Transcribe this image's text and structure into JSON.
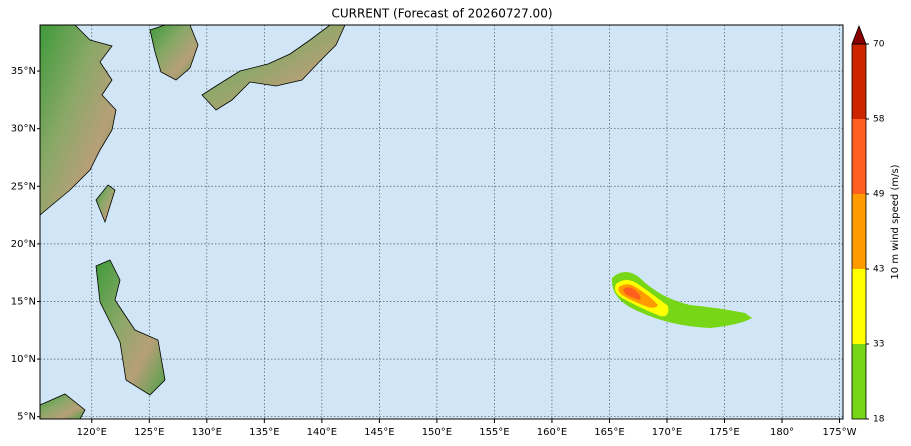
{
  "map": {
    "title": "CURRENT (Forecast of 20260727.00)",
    "lon_range": [
      115.5,
      185.3
    ],
    "lat_range": [
      4.8,
      39
    ],
    "lon_ticks": [
      {
        "value": 120,
        "label": "120°E"
      },
      {
        "value": 125,
        "label": "125°E"
      },
      {
        "value": 130,
        "label": "130°E"
      },
      {
        "value": 135,
        "label": "135°E"
      },
      {
        "value": 140,
        "label": "140°E"
      },
      {
        "value": 145,
        "label": "145°E"
      },
      {
        "value": 150,
        "label": "150°E"
      },
      {
        "value": 155,
        "label": "155°E"
      },
      {
        "value": 160,
        "label": "160°E"
      },
      {
        "value": 165,
        "label": "165°E"
      },
      {
        "value": 170,
        "label": "170°E"
      },
      {
        "value": 175,
        "label": "175°E"
      },
      {
        "value": 180,
        "label": "180°"
      },
      {
        "value": 185,
        "label": "175°W"
      }
    ],
    "lat_ticks": [
      {
        "value": 5,
        "label": "5°N"
      },
      {
        "value": 10,
        "label": "10°N"
      },
      {
        "value": 15,
        "label": "15°N"
      },
      {
        "value": 20,
        "label": "20°N"
      },
      {
        "value": 25,
        "label": "25°N"
      },
      {
        "value": 30,
        "label": "30°N"
      },
      {
        "value": 35,
        "label": "35°N"
      }
    ],
    "colorbar": {
      "label": "10 m wind speed (m/s)",
      "ticks": [
        18,
        33,
        43,
        49,
        58,
        70
      ],
      "colors": [
        "#77d616",
        "#ffff00",
        "#ff9a00",
        "#ff5e1e",
        "#cc2500"
      ],
      "extend_color": "#8b0000"
    }
  }
}
